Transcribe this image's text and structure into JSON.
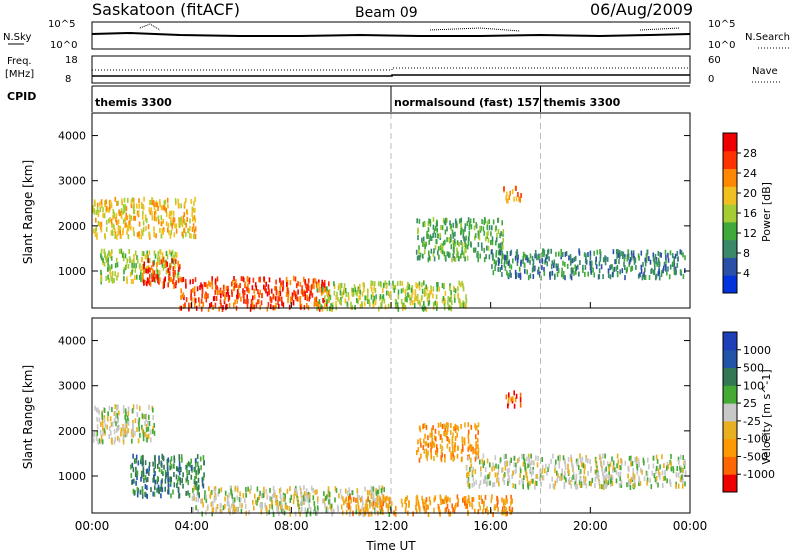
{
  "header": {
    "station": "Saskatoon (fitACF)",
    "beam": "Beam 09",
    "date": "06/Aug/2009"
  },
  "noise_panel": {
    "left_label": "N.Sky",
    "right_label": "N.Search",
    "left_ticks": [
      "10^5",
      "10^0"
    ],
    "right_ticks": [
      "10^5",
      "10^0"
    ]
  },
  "freq_panel": {
    "left_label_1": "Freq.",
    "left_label_2": "[MHz]",
    "right_label": "Nave",
    "left_ticks": [
      "18",
      "8"
    ],
    "right_ticks": [
      "60",
      "0"
    ]
  },
  "cpid": {
    "label": "CPID",
    "segments": [
      {
        "name": "themis 3300",
        "start_hour": 0
      },
      {
        "name": "normalsound (fast) 157",
        "start_hour": 12
      },
      {
        "name": "themis 3300",
        "start_hour": 18
      }
    ]
  },
  "colors": {
    "power": [
      "#0033dd",
      "#2a4fa8",
      "#3a8a6a",
      "#3faa3a",
      "#a6cc33",
      "#f0c020",
      "#ff8800",
      "#ff3300",
      "#ee0000"
    ],
    "velocity": [
      "#1f3fb8",
      "#2255aa",
      "#337755",
      "#44aa33",
      "#c8c8c8",
      "#e8b020",
      "#ff9900",
      "#ff6600",
      "#ee0000"
    ]
  },
  "chart_data": [
    {
      "type": "heatmap",
      "ylabel": "Slant Range [km]",
      "x_range": [
        0,
        24
      ],
      "ylim": [
        180,
        4500
      ],
      "y_ticks": [
        "1000",
        "2000",
        "3000",
        "4000"
      ],
      "colorbar": {
        "label": "Power [dB]",
        "tick_labels": [
          "4",
          "8",
          "12",
          "16",
          "20",
          "24",
          "28"
        ],
        "range": [
          0,
          32
        ]
      },
      "regions": [
        {
          "t0": 0.0,
          "t1": 4.2,
          "r0": 1800,
          "r1": 2650,
          "value": 18
        },
        {
          "t0": 0.3,
          "t1": 3.5,
          "r0": 800,
          "r1": 1500,
          "value": 16
        },
        {
          "t0": 2.0,
          "t1": 3.5,
          "r0": 700,
          "r1": 1300,
          "value": 26
        },
        {
          "t0": 3.5,
          "t1": 9.5,
          "r0": 200,
          "r1": 900,
          "value": 28
        },
        {
          "t0": 9.0,
          "t1": 15.0,
          "r0": 200,
          "r1": 800,
          "value": 14
        },
        {
          "t0": 13.0,
          "t1": 16.5,
          "r0": 1300,
          "r1": 2200,
          "value": 12
        },
        {
          "t0": 16.0,
          "t1": 23.8,
          "r0": 900,
          "r1": 1500,
          "value": 8
        },
        {
          "t0": 16.5,
          "t1": 17.2,
          "r0": 2600,
          "r1": 2900,
          "value": 24
        }
      ]
    },
    {
      "type": "heatmap",
      "xlabel": "Time UT",
      "ylabel": "Slant Range [km]",
      "x_range": [
        0,
        24
      ],
      "ylim": [
        180,
        4500
      ],
      "x_ticks": [
        "00:00",
        "04:00",
        "08:00",
        "12:00",
        "16:00",
        "20:00",
        "00:00"
      ],
      "y_ticks": [
        "1000",
        "2000",
        "3000",
        "4000"
      ],
      "colorbar": {
        "label": "Velocity [m s^-1]",
        "tick_labels": [
          "1000",
          "500",
          "100",
          "25",
          "-25",
          "-100",
          "-500",
          "-1000"
        ]
      },
      "regions": [
        {
          "t0": 0.0,
          "t1": 2.5,
          "r0": 1800,
          "r1": 2600,
          "value": 0
        },
        {
          "t0": 1.5,
          "t1": 4.5,
          "r0": 600,
          "r1": 1500,
          "value": 200
        },
        {
          "t0": 4.0,
          "t1": 12.0,
          "r0": 200,
          "r1": 800,
          "value": 0
        },
        {
          "t0": 10.0,
          "t1": 17.0,
          "r0": 200,
          "r1": 600,
          "value": -80
        },
        {
          "t0": 13.0,
          "t1": 15.5,
          "r0": 1400,
          "r1": 2200,
          "value": -300
        },
        {
          "t0": 16.5,
          "t1": 17.2,
          "r0": 2600,
          "r1": 2900,
          "value": -600
        },
        {
          "t0": 15.0,
          "t1": 23.8,
          "r0": 800,
          "r1": 1500,
          "value": 0
        }
      ]
    }
  ]
}
